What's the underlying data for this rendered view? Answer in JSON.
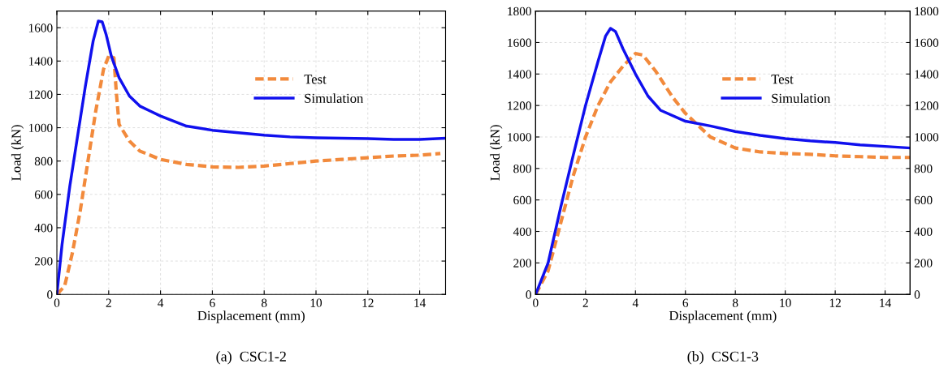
{
  "chart_data": [
    {
      "type": "line",
      "title": "(a)  CSC1-2",
      "xlabel": "Displacement (mm)",
      "ylabel": "Load (kN)",
      "xlim": [
        0,
        15
      ],
      "xticks": [
        0,
        2,
        4,
        6,
        8,
        10,
        12,
        14
      ],
      "ylim": [
        0,
        1700
      ],
      "yticks": [
        0,
        200,
        400,
        600,
        800,
        1000,
        1200,
        1400,
        1600
      ],
      "grid": true,
      "legend": "top right",
      "series": [
        {
          "name": "Test",
          "color": "#f28a3c",
          "line_style": "dashed",
          "x": [
            0,
            0.3,
            0.6,
            0.9,
            1.2,
            1.5,
            1.8,
            2.0,
            2.2,
            2.3,
            2.4,
            2.8,
            3.2,
            4,
            5,
            6,
            7,
            8,
            9,
            10,
            11,
            12,
            13,
            14,
            14.8
          ],
          "values": [
            0,
            50,
            250,
            500,
            800,
            1100,
            1350,
            1430,
            1420,
            1200,
            1020,
            920,
            860,
            810,
            780,
            765,
            762,
            770,
            785,
            800,
            810,
            820,
            830,
            835,
            845
          ]
        },
        {
          "name": "Simulation",
          "color": "#1010ee",
          "line_style": "solid",
          "x": [
            0,
            0.2,
            0.5,
            0.8,
            1.1,
            1.4,
            1.6,
            1.75,
            1.9,
            2.1,
            2.4,
            2.8,
            3.2,
            3.6,
            4,
            5,
            6,
            7,
            8,
            9,
            10,
            11,
            12,
            13,
            14,
            15
          ],
          "values": [
            0,
            300,
            650,
            950,
            1250,
            1520,
            1640,
            1635,
            1560,
            1430,
            1300,
            1190,
            1130,
            1100,
            1070,
            1010,
            985,
            970,
            955,
            945,
            940,
            937,
            935,
            930,
            930,
            937
          ]
        }
      ]
    },
    {
      "type": "line",
      "title": "(b)  CSC1-3",
      "xlabel": "Displacement (mm)",
      "ylabel": "Load (kN)",
      "xlim": [
        0,
        15
      ],
      "xticks": [
        0,
        2,
        4,
        6,
        8,
        10,
        12,
        14
      ],
      "ylim": [
        0,
        1800
      ],
      "yticks": [
        0,
        200,
        400,
        600,
        800,
        1000,
        1200,
        1400,
        1600,
        1800
      ],
      "y2lim": [
        0,
        1800
      ],
      "y2ticks": [
        0,
        200,
        400,
        600,
        800,
        1000,
        1200,
        1400,
        1600,
        1800
      ],
      "grid": true,
      "legend": "top right",
      "series": [
        {
          "name": "Test",
          "color": "#f28a3c",
          "line_style": "dashed",
          "x": [
            0,
            0.5,
            1,
            1.5,
            2,
            2.5,
            3,
            3.5,
            4,
            4.3,
            4.8,
            5.5,
            6,
            7,
            8,
            9,
            10,
            11,
            12,
            13,
            14,
            15
          ],
          "values": [
            0,
            150,
            450,
            750,
            1000,
            1200,
            1350,
            1450,
            1530,
            1520,
            1420,
            1250,
            1150,
            1000,
            930,
            905,
            895,
            890,
            880,
            875,
            870,
            870
          ]
        },
        {
          "name": "Simulation",
          "color": "#1010ee",
          "line_style": "solid",
          "x": [
            0,
            0.5,
            1,
            1.5,
            2,
            2.5,
            2.8,
            3,
            3.2,
            3.5,
            4,
            4.5,
            5,
            6,
            7,
            8,
            9,
            10,
            11,
            12,
            13,
            14,
            15
          ],
          "values": [
            0,
            200,
            550,
            880,
            1200,
            1480,
            1640,
            1690,
            1670,
            1560,
            1400,
            1260,
            1170,
            1100,
            1070,
            1035,
            1010,
            990,
            975,
            965,
            950,
            940,
            930
          ]
        }
      ]
    }
  ]
}
